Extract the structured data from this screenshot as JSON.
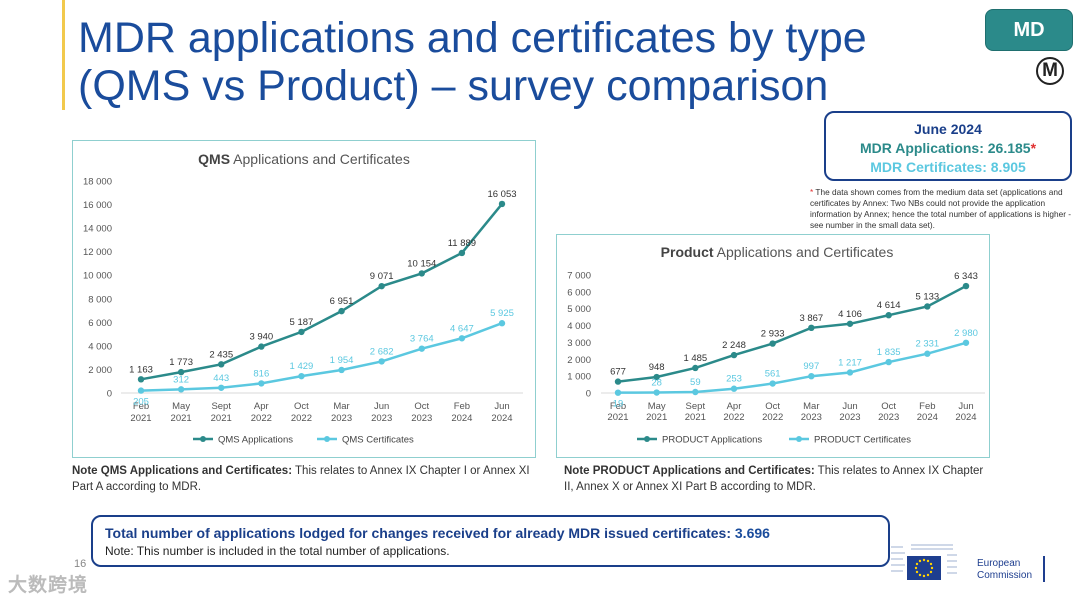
{
  "header": {
    "title": "MDR applications and certificates by type (QMS vs Product) –  survey comparison",
    "badge": "MD",
    "logo_letter": "M"
  },
  "summary": {
    "date": "June 2024",
    "applications": "MDR Applications: 26.185",
    "asterisk": "*",
    "certificates": "MDR Certificates: 8.905"
  },
  "footnote": {
    "star": "*",
    "text": " The data shown comes from the medium data set (applications and certificates by Annex: Two NBs could not provide the application information by Annex; hence the total number of applications is higher - see number in the small data set)."
  },
  "colors": {
    "applications": "#2b8a8a",
    "certificates": "#5bc8e0",
    "title": "#1a4c9c",
    "box": "#1a3f8a"
  },
  "chart_data": [
    {
      "type": "line",
      "title_bold": "QMS",
      "title_rest": " Applications and Certificates",
      "categories": [
        [
          "Feb",
          "2021"
        ],
        [
          "May",
          "2021"
        ],
        [
          "Sept",
          "2021"
        ],
        [
          "Apr",
          "2022"
        ],
        [
          "Oct",
          "2022"
        ],
        [
          "Mar",
          "2023"
        ],
        [
          "Jun",
          "2023"
        ],
        [
          "Oct",
          "2023"
        ],
        [
          "Feb",
          "2024"
        ],
        [
          "Jun",
          "2024"
        ]
      ],
      "ylim": [
        0,
        18000
      ],
      "yticks": [
        0,
        2000,
        4000,
        6000,
        8000,
        10000,
        12000,
        14000,
        16000,
        18000
      ],
      "ytick_labels": [
        "0",
        "2 000",
        "4 000",
        "6 000",
        "8 000",
        "10 000",
        "12 000",
        "14 000",
        "16 000",
        "18 000"
      ],
      "grid": false,
      "legend": "bottom",
      "series": [
        {
          "name": "QMS Applications",
          "values": [
            1163,
            1773,
            2435,
            3940,
            5187,
            6951,
            9071,
            10154,
            11889,
            16053
          ],
          "labels": [
            "1 163",
            "1 773",
            "2 435",
            "3 940",
            "5 187",
            "6 951",
            "9 071",
            "10 154",
            "11 889",
            "16 053"
          ]
        },
        {
          "name": "QMS Certificates",
          "values": [
            205,
            312,
            443,
            816,
            1429,
            1954,
            2682,
            3764,
            4647,
            5925
          ],
          "labels": [
            "205",
            "312",
            "443",
            "816",
            "1 429",
            "1 954",
            "2 682",
            "3 764",
            "4 647",
            "5 925"
          ]
        }
      ]
    },
    {
      "type": "line",
      "title_bold": "Product",
      "title_rest": " Applications and Certificates",
      "categories": [
        [
          "Feb",
          "2021"
        ],
        [
          "May",
          "2021"
        ],
        [
          "Sept",
          "2021"
        ],
        [
          "Apr",
          "2022"
        ],
        [
          "Oct",
          "2022"
        ],
        [
          "Mar",
          "2023"
        ],
        [
          "Jun",
          "2023"
        ],
        [
          "Oct",
          "2023"
        ],
        [
          "Feb",
          "2024"
        ],
        [
          "Jun",
          "2024"
        ]
      ],
      "ylim": [
        0,
        7000
      ],
      "yticks": [
        0,
        1000,
        2000,
        3000,
        4000,
        5000,
        6000,
        7000
      ],
      "ytick_labels": [
        "0",
        "1 000",
        "2 000",
        "3 000",
        "4 000",
        "5 000",
        "6 000",
        "7 000"
      ],
      "grid": false,
      "legend": "bottom",
      "series": [
        {
          "name": "PRODUCT Applications",
          "values": [
            677,
            948,
            1485,
            2248,
            2933,
            3867,
            4106,
            4614,
            5133,
            6343
          ],
          "labels": [
            "677",
            "948",
            "1 485",
            "2 248",
            "2 933",
            "3 867",
            "4 106",
            "4 614",
            "5 133",
            "6 343"
          ]
        },
        {
          "name": "PRODUCT Certificates",
          "values": [
            19,
            28,
            59,
            253,
            561,
            997,
            1217,
            1835,
            2331,
            2980
          ],
          "labels": [
            "19",
            "28",
            "59",
            "253",
            "561",
            "997",
            "1 217",
            "1 835",
            "2 331",
            "2 980"
          ]
        }
      ]
    }
  ],
  "notes": {
    "qms_bold": "Note QMS Applications and Certificates:",
    "qms_text": " This relates to Annex IX Chapter I or Annex XI Part A according to MDR.",
    "product_bold": "Note PRODUCT Applications and Certificates:",
    "product_text": " This relates to Annex IX Chapter II, Annex X or Annex XI Part B according to MDR."
  },
  "total": {
    "label": "Total number of applications lodged for changes received for already MDR issued certificates: ",
    "value": "3.696",
    "note": "Note: This number is included in the total number of applications."
  },
  "page_number": "16",
  "eu": {
    "line1": "European",
    "line2": "Commission"
  },
  "watermark": "大数跨境"
}
